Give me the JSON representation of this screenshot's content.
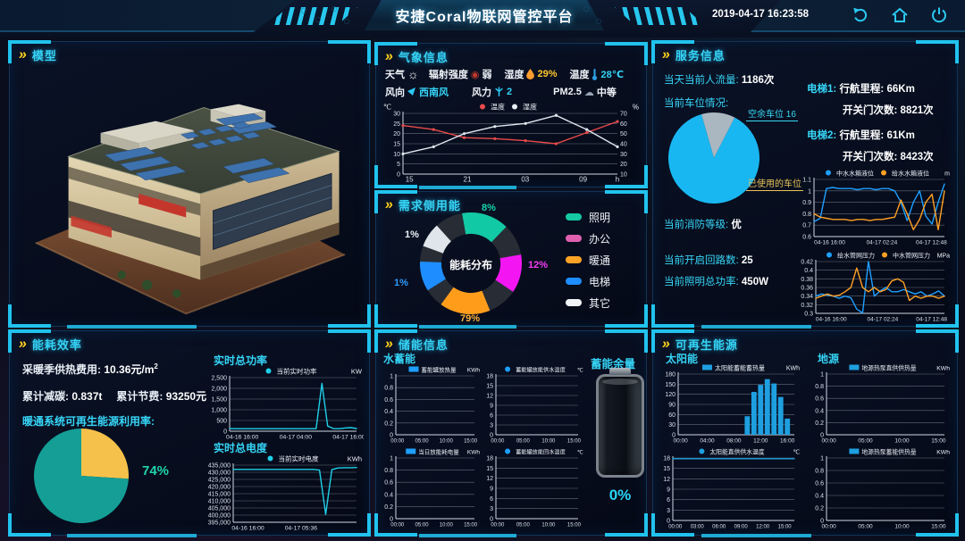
{
  "colors": {
    "accent": "#2bc9f2",
    "gold": "#ffd21e",
    "teal": "#14c9a4",
    "magenta": "#f316f3",
    "orange": "#ff9d1b",
    "blue": "#1e8dff",
    "red_line": "#e84b4b"
  },
  "header": {
    "title": "安捷Coral物联网管控平台",
    "timestamp": "2019-04-17 16:23:58",
    "icon_names": [
      "undo-icon",
      "home-icon",
      "power-icon"
    ]
  },
  "panels": {
    "model": {
      "title": "模型"
    },
    "weather": {
      "title": "气象信息",
      "r1c1_label": "天气",
      "r1c2_label": "辐射强度",
      "r1c2_value": "弱",
      "r1c3_label": "湿度",
      "r1c3_value": "29%",
      "r1c4_label": "温度",
      "r1c4_value": "28℃",
      "r2c1_label": "风向",
      "r2c1_value": "西南风",
      "r2c2_label": "风力",
      "r2c2_value": "2",
      "r2c3_label": "PM2.5",
      "r2c3_value": "中等"
    },
    "demand": {
      "title": "需求侧用能",
      "center_label": "能耗分布",
      "legend": [
        {
          "label": "照明",
          "color": "#14c9a4"
        },
        {
          "label": "办公",
          "color": "#e060b0"
        },
        {
          "label": "暖通",
          "color": "#ffa326"
        },
        {
          "label": "电梯",
          "color": "#1e8dff"
        },
        {
          "label": "其它",
          "color": "#f2f5f7"
        }
      ],
      "callouts": [
        {
          "text": "8%",
          "color": "#17d3ae"
        },
        {
          "text": "12%",
          "color": "#f53cf5"
        },
        {
          "text": "79%",
          "color": "#ffb23a"
        },
        {
          "text": "1%",
          "color": "#2e9bff"
        },
        {
          "text": "1%",
          "color": "#eef3f7"
        }
      ]
    },
    "service": {
      "title": "服务信息",
      "people_label": "当天当前人流量:",
      "people_value": "1186次",
      "parking_label": "当前车位情况:",
      "free_label": "空余车位 16",
      "used_label": "已使用的车位",
      "e1_name": "电梯1:",
      "e1_m_label": "行航里程:",
      "e1_m_value": "66Km",
      "e1_d_label": "开关门次数:",
      "e1_d_value": "8821次",
      "e2_name": "电梯2:",
      "e2_m_label": "行航里程:",
      "e2_m_value": "61Km",
      "e2_d_label": "开关门次数:",
      "e2_d_value": "8423次",
      "fire_label": "当前消防等级:",
      "fire_value": "优",
      "loop_label": "当前开启回路数:",
      "loop_value": "25",
      "light_label": "当前照明总功率:",
      "light_value": "450W"
    },
    "efficiency": {
      "title": "能耗效率",
      "heat_label": "采暖季供热费用:",
      "heat_value": "10.36元/m",
      "heat_sup": "2",
      "carbon_label": "累计减碳:",
      "carbon_value": "0.837t",
      "save_label": "累计节费:",
      "save_value": "93250元",
      "renew_label": "暖通系统可再生能源利用率:",
      "renew_pct": "74%",
      "power_title": "实时总功率",
      "elec_title": "实时总电度"
    },
    "storage": {
      "title": "储能信息",
      "sub": "水蓄能",
      "battery_label": "蓄能余量",
      "battery_value": "0%"
    },
    "renewable": {
      "title": "可再生能源",
      "solar_sub": "太阳能",
      "geo_sub": "地源"
    }
  },
  "chart_data": [
    {
      "id": "weather_trend",
      "type": "line",
      "unit_left": "℃",
      "unit_right": "%",
      "legend": [
        {
          "label": "温度",
          "color": "#e84b4b",
          "marker": "dot"
        },
        {
          "label": "湿度",
          "color": "#e9eff5",
          "marker": "dot"
        }
      ],
      "y": {
        "ticks": [
          0,
          5,
          10,
          15,
          20,
          25,
          30
        ]
      },
      "y2": {
        "ticks": [
          10,
          20,
          30,
          40,
          50,
          60,
          70
        ]
      },
      "x_ticks": [
        {
          "t": "15",
          "f": 0.03
        },
        {
          "t": "21",
          "f": 0.3
        },
        {
          "t": "03",
          "f": 0.57
        },
        {
          "t": "09",
          "f": 0.84
        },
        {
          "t": "h",
          "f": 1
        }
      ],
      "series": [
        {
          "name": "温度",
          "axis": 1,
          "color": "#e84b4b",
          "dots": true,
          "values": [
            24,
            22,
            18,
            17.5,
            16.5,
            15,
            20.5,
            26
          ]
        },
        {
          "name": "湿度",
          "axis": 2,
          "color": "#dfe7ee",
          "dots": true,
          "values": [
            30,
            37,
            50,
            57,
            60,
            68,
            54,
            37
          ]
        }
      ],
      "ml": 24,
      "mr": 26,
      "xfs": 8,
      "lfs": 8
    },
    {
      "id": "svc_level",
      "type": "line",
      "unit": "m",
      "legend": [
        {
          "label": "中水水箱液位",
          "color": "#1e9fff",
          "marker": "dot"
        },
        {
          "label": "给水水箱液位",
          "color": "#ffa024",
          "marker": "dot"
        }
      ],
      "y": {
        "ticks": [
          0.6,
          0.7,
          0.8,
          0.9,
          1,
          1.1
        ]
      },
      "x_ticks": [
        {
          "t": "04-16 16:00",
          "f": 0.12
        },
        {
          "t": "04-17 02:24",
          "f": 0.52
        },
        {
          "t": "04-17 12:48",
          "f": 0.9
        }
      ],
      "series": [
        {
          "name": "中水水箱液位",
          "color": "#1e9fff",
          "values": [
            0.73,
            0.76,
            1.02,
            1.03,
            1.02,
            1.02,
            1.02,
            1.01,
            1.02,
            1.02,
            1.01,
            1.02,
            1.02,
            1.0,
            0.9,
            0.74,
            0.9,
            1.0,
            0.78,
            0.71,
            0.9,
            1.06
          ]
        },
        {
          "name": "给水水箱液位",
          "color": "#ffa024",
          "values": [
            0.8,
            0.77,
            0.76,
            0.75,
            0.75,
            0.75,
            0.74,
            0.75,
            0.75,
            0.74,
            0.75,
            0.75,
            0.76,
            0.77,
            0.92,
            0.8,
            0.66,
            0.75,
            0.9,
            0.97,
            0.66,
            1.0
          ]
        }
      ],
      "ml": 22,
      "lfs": 7,
      "xfs": 6.5
    },
    {
      "id": "svc_pressure",
      "type": "line",
      "unit": "MPa",
      "legend": [
        {
          "label": "给水管网压力",
          "color": "#1e9fff",
          "marker": "dot"
        },
        {
          "label": "中水管网压力",
          "color": "#ffa024",
          "marker": "dot"
        }
      ],
      "y": {
        "ticks": [
          0.3,
          0.32,
          0.34,
          0.36,
          0.38,
          0.4,
          0.42
        ]
      },
      "x_ticks": [
        {
          "t": "04-16 16:00",
          "f": 0.12
        },
        {
          "t": "04-17 02:24",
          "f": 0.52
        },
        {
          "t": "04-17 12:48",
          "f": 0.9
        }
      ],
      "series": [
        {
          "name": "给水管网压力",
          "color": "#1e9fff",
          "values": [
            0.34,
            0.345,
            0.342,
            0.34,
            0.335,
            0.34,
            0.336,
            0.31,
            0.301,
            0.42,
            0.34,
            0.352,
            0.36,
            0.35,
            0.35,
            0.355,
            0.35,
            0.345,
            0.35,
            0.34,
            0.345,
            0.352,
            0.34
          ]
        },
        {
          "name": "中水管网压力",
          "color": "#ffa024",
          "values": [
            0.335,
            0.34,
            0.345,
            0.34,
            0.342,
            0.35,
            0.36,
            0.405,
            0.36,
            0.35,
            0.36,
            0.35,
            0.355,
            0.375,
            0.38,
            0.372,
            0.33,
            0.34,
            0.335,
            0.34,
            0.34,
            0.335,
            0.34
          ]
        }
      ],
      "ml": 24,
      "lfs": 7,
      "xfs": 6.5
    },
    {
      "id": "power_rt",
      "type": "line",
      "unit": "KW",
      "legend": [
        {
          "label": "当前实时功率",
          "color": "#1fd0e8",
          "marker": "dot"
        }
      ],
      "y": {
        "ticks": [
          0,
          500,
          1000,
          1500,
          2000,
          2500
        ]
      },
      "x_ticks": [
        {
          "t": "04-16 16:00",
          "f": 0.1
        },
        {
          "t": "04-17 04:00",
          "f": 0.52
        },
        {
          "t": "04-17 16:00",
          "f": 0.94
        }
      ],
      "series": [
        {
          "name": "当前实时功率",
          "color": "#1fd0e8",
          "values": [
            120,
            118,
            115,
            118,
            116,
            115,
            117,
            116,
            115,
            118,
            116,
            115,
            117,
            118,
            116,
            115,
            2230,
            240,
            120,
            115,
            150,
            165,
            125
          ]
        }
      ],
      "ml": 32,
      "xfs": 6.8,
      "lfs": 7.5
    },
    {
      "id": "elec_rt",
      "type": "line",
      "unit": "KWh",
      "legend": [
        {
          "label": "当前实时电度",
          "color": "#1fd0e8",
          "marker": "dot"
        }
      ],
      "y": {
        "ticks": [
          395000,
          400000,
          405000,
          410000,
          415000,
          420000,
          425000,
          430000,
          435000
        ]
      },
      "x_ticks": [
        {
          "t": "04-16 16:00",
          "f": 0.12
        },
        {
          "t": "04-17 05:36",
          "f": 0.55
        }
      ],
      "series": [
        {
          "name": "当前实时电度",
          "color": "#1fd0e8",
          "values": [
            432000,
            432000,
            432000,
            432000,
            432000,
            432000,
            432000,
            432000,
            432000,
            432000,
            432000,
            432000,
            432000,
            432000,
            431500,
            400500,
            431800,
            433000,
            433200,
            433200,
            433300
          ]
        }
      ],
      "ml": 44,
      "xfs": 6.8,
      "lfs": 7.5
    },
    {
      "id": "st_heat",
      "type": "line",
      "unit": "KWh",
      "legend": [
        {
          "label": "蓄能罐放热量",
          "color": "#1e9fff",
          "marker": "bar"
        }
      ],
      "y": {
        "ticks": [
          0,
          0.2,
          0.4,
          0.6,
          0.8,
          1
        ]
      },
      "x_ticks": [
        {
          "t": "00:00",
          "f": 0.02
        },
        {
          "t": "05:00",
          "f": 0.33
        },
        {
          "t": "10:00",
          "f": 0.64
        },
        {
          "t": "15:00",
          "f": 0.95
        }
      ],
      "series": [],
      "ml": 18,
      "lfs": 6.5,
      "xfs": 6
    },
    {
      "id": "st_sup_temp",
      "type": "line",
      "unit": "℃",
      "legend": [
        {
          "label": "蓄能罐放能供水温度",
          "color": "#1e9fff",
          "marker": "dot"
        }
      ],
      "y": {
        "ticks": [
          0,
          3,
          6,
          9,
          12,
          15,
          18
        ]
      },
      "x_ticks": [
        {
          "t": "00:00",
          "f": 0.02
        },
        {
          "t": "05:00",
          "f": 0.33
        },
        {
          "t": "10:00",
          "f": 0.64
        },
        {
          "t": "15:00",
          "f": 0.95
        }
      ],
      "series": [],
      "ml": 14,
      "lfs": 6.2,
      "xfs": 6
    },
    {
      "id": "st_day_power",
      "type": "line",
      "unit": "KWh",
      "legend": [
        {
          "label": "当日放能耗电量",
          "color": "#1e9fff",
          "marker": "bar"
        }
      ],
      "y": {
        "ticks": [
          0,
          0.2,
          0.4,
          0.6,
          0.8,
          1
        ]
      },
      "x_ticks": [
        {
          "t": "00:00",
          "f": 0.02
        },
        {
          "t": "05:00",
          "f": 0.33
        },
        {
          "t": "10:00",
          "f": 0.64
        },
        {
          "t": "15:00",
          "f": 0.95
        }
      ],
      "series": [],
      "ml": 18,
      "lfs": 6.5,
      "xfs": 6
    },
    {
      "id": "st_ret_temp",
      "type": "line",
      "unit": "℃",
      "legend": [
        {
          "label": "蓄能罐放能回水温度",
          "color": "#1e9fff",
          "marker": "dot"
        }
      ],
      "y": {
        "ticks": [
          0,
          3,
          6,
          9,
          12,
          15,
          18
        ]
      },
      "x_ticks": [
        {
          "t": "00:00",
          "f": 0.02
        },
        {
          "t": "05:00",
          "f": 0.33
        },
        {
          "t": "10:00",
          "f": 0.64
        },
        {
          "t": "15:00",
          "f": 0.95
        }
      ],
      "series": [],
      "ml": 14,
      "lfs": 6.2,
      "xfs": 6
    },
    {
      "id": "solar_heat",
      "type": "bar",
      "unit": "KWh",
      "legend": [
        {
          "label": "太阳能蓄能蓄热量",
          "color": "#1e9fe0",
          "marker": "bar"
        }
      ],
      "y": {
        "ticks": [
          0,
          30,
          60,
          90,
          120,
          150,
          180
        ]
      },
      "x_ticks": [
        {
          "t": "00:00",
          "f": 0.02
        },
        {
          "t": "04:00",
          "f": 0.25
        },
        {
          "t": "08:00",
          "f": 0.48
        },
        {
          "t": "12:00",
          "f": 0.71
        },
        {
          "t": "16:00",
          "f": 0.94
        }
      ],
      "bar": {
        "color": "#1e9fe0",
        "w": 0.045,
        "frac": [
          0.595,
          0.6525,
          0.71,
          0.7675,
          0.825,
          0.8825,
          0.94
        ],
        "values": [
          55,
          127,
          148,
          165,
          152,
          112,
          48
        ]
      },
      "series": [],
      "ml": 22,
      "lfs": 7,
      "xfs": 6.5
    },
    {
      "id": "geo_direct",
      "type": "line",
      "unit": "KWh",
      "legend": [
        {
          "label": "地源热泵直供供热量",
          "color": "#1e9fe0",
          "marker": "bar"
        }
      ],
      "y": {
        "ticks": [
          0,
          0.2,
          0.4,
          0.6,
          0.8,
          1
        ]
      },
      "x_ticks": [
        {
          "t": "00:00",
          "f": 0.02
        },
        {
          "t": "05:00",
          "f": 0.33
        },
        {
          "t": "10:00",
          "f": 0.64
        },
        {
          "t": "15:00",
          "f": 0.95
        }
      ],
      "series": [],
      "ml": 20,
      "lfs": 6.8,
      "xfs": 6.5
    },
    {
      "id": "solar_temp",
      "type": "line",
      "unit": "℃",
      "legend": [
        {
          "label": "太阳能直供供水温度",
          "color": "#1e9fe0",
          "marker": "dot"
        }
      ],
      "y": {
        "ticks": [
          0,
          3,
          6,
          9,
          12,
          15,
          18
        ]
      },
      "x_ticks": [
        {
          "t": "00:00",
          "f": 0.02
        },
        {
          "t": "03:00",
          "f": 0.2
        },
        {
          "t": "06:00",
          "f": 0.38
        },
        {
          "t": "09:00",
          "f": 0.56
        },
        {
          "t": "12:00",
          "f": 0.74
        },
        {
          "t": "15:00",
          "f": 0.92
        }
      ],
      "series": [
        {
          "name": "太阳能直供供水温度",
          "color": "#1e9fe0",
          "values": [
            17.8,
            17.8,
            17.8,
            17.8,
            17.8,
            17.8,
            17.8,
            17.8,
            17.8,
            17.8,
            17.8
          ]
        }
      ],
      "ml": 16,
      "lfs": 6.8,
      "xfs": 6
    },
    {
      "id": "geo_storage",
      "type": "line",
      "unit": "KWh",
      "legend": [
        {
          "label": "地源热泵蓄能供热量",
          "color": "#1e9fe0",
          "marker": "bar"
        }
      ],
      "y": {
        "ticks": [
          0,
          0.2,
          0.4,
          0.6,
          0.8,
          1
        ]
      },
      "x_ticks": [
        {
          "t": "00:00",
          "f": 0.02
        },
        {
          "t": "05:00",
          "f": 0.33
        },
        {
          "t": "10:00",
          "f": 0.64
        },
        {
          "t": "15:00",
          "f": 0.95
        }
      ],
      "series": [],
      "ml": 20,
      "lfs": 6.8,
      "xfs": 6.5
    },
    {
      "id": "parking_pie",
      "type": "pie",
      "start": -16,
      "slices": [
        {
          "label": "空余车位",
          "value": 12,
          "color": "#aab6c0"
        },
        {
          "label": "已使用的车位",
          "value": 88,
          "color": "#19b7f2"
        }
      ]
    },
    {
      "id": "renew_pie",
      "type": "pie",
      "start": 0,
      "slices": [
        {
          "label": "",
          "value": 26,
          "color": "#f6c14a"
        },
        {
          "label": "暖通系统可再生能源利用率",
          "value": 74,
          "color": "#149e96"
        }
      ]
    },
    {
      "id": "demand_donut",
      "type": "donut",
      "irf": 0.58,
      "filler": "#272c35",
      "slices": [
        {
          "label": "照明",
          "value": 8,
          "color": "#12c9a5",
          "from": -10,
          "to": 44
        },
        {
          "label": "办公",
          "value": 12,
          "color": "#f316f3",
          "from": 80,
          "to": 124
        },
        {
          "label": "暖通",
          "value": 79,
          "color": "#ff9d1b",
          "from": 158,
          "to": 216
        },
        {
          "label": "电梯",
          "value": 1,
          "color": "#1e8dff",
          "from": 238,
          "to": 272
        },
        {
          "label": "其它",
          "value": 1,
          "color": "#dfe5ea",
          "from": 290,
          "to": 318
        }
      ]
    }
  ]
}
